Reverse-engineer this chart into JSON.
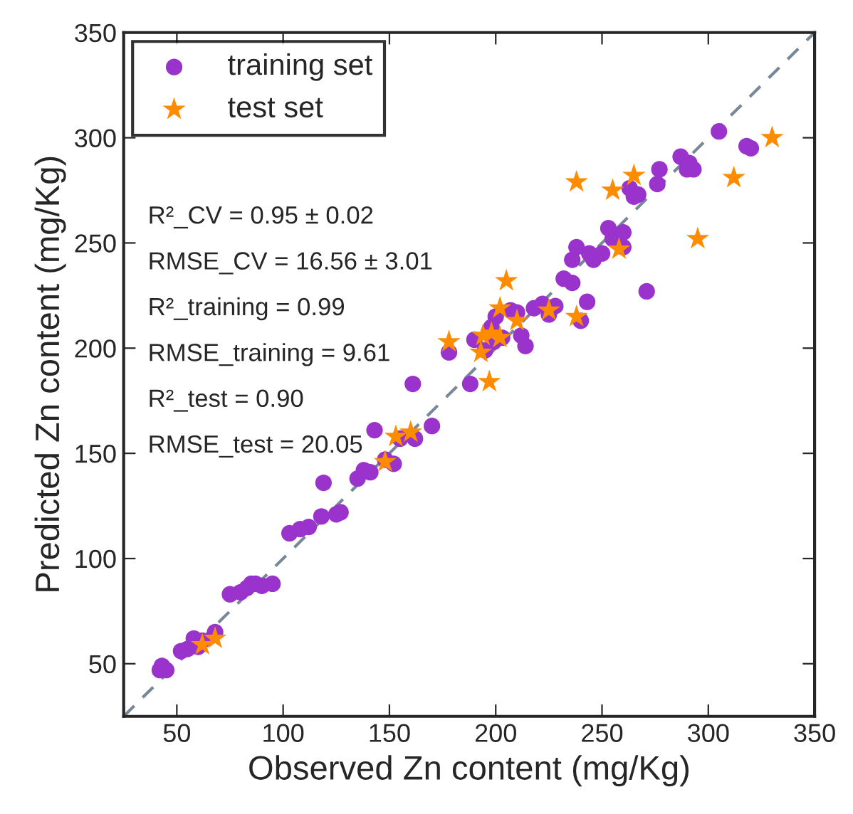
{
  "chart_data": {
    "type": "scatter",
    "xlabel": "Observed Zn content (mg/Kg)",
    "ylabel": "Predicted Zn content (mg/Kg)",
    "xlim": [
      25,
      350
    ],
    "ylim": [
      25,
      350
    ],
    "xticks": [
      50,
      100,
      150,
      200,
      250,
      300,
      350
    ],
    "yticks": [
      50,
      100,
      150,
      200,
      250,
      300,
      350
    ],
    "grid": false,
    "legend": "top left",
    "annotations": [
      "R²_CV = 0.95 ± 0.02",
      "RMSE_CV = 16.56 ± 3.01",
      "R²_training = 0.99",
      "RMSE_training = 9.61",
      "R²_test = 0.90",
      "RMSE_test = 20.05"
    ],
    "series": [
      {
        "type": "line",
        "color": "#778899",
        "line_style": "dashed",
        "marker": "none",
        "x": [
          25,
          350
        ],
        "values": [
          25,
          350
        ]
      },
      {
        "name": "training set",
        "color": "#9933cc",
        "marker": "circle",
        "x": [
          42,
          43,
          45,
          52,
          55,
          58,
          60,
          62,
          68,
          75,
          80,
          83,
          85,
          87,
          90,
          95,
          103,
          108,
          112,
          118,
          119,
          125,
          127,
          135,
          138,
          141,
          143,
          148,
          152,
          155,
          162,
          170,
          161,
          178,
          188,
          190,
          195,
          198,
          199,
          200,
          203,
          207,
          210,
          212,
          214,
          218,
          222,
          225,
          228,
          232,
          236,
          236,
          238,
          240,
          243,
          244,
          246,
          250,
          253,
          255,
          260,
          260,
          263,
          265,
          267,
          271,
          276,
          277,
          287,
          290,
          291,
          293,
          305,
          318,
          320
        ],
        "values": [
          47,
          49,
          47,
          56,
          57,
          62,
          58,
          61,
          65,
          83,
          84,
          86,
          88,
          88,
          87,
          88,
          112,
          114,
          115,
          120,
          136,
          121,
          122,
          138,
          142,
          141,
          161,
          147,
          145,
          157,
          157,
          163,
          183,
          198,
          183,
          204,
          199,
          210,
          203,
          215,
          205,
          218,
          217,
          206,
          201,
          219,
          221,
          216,
          220,
          233,
          231,
          242,
          248,
          213,
          222,
          245,
          242,
          245,
          257,
          252,
          248,
          255,
          276,
          272,
          273,
          227,
          278,
          285,
          291,
          285,
          288,
          285,
          303,
          296,
          295
        ]
      },
      {
        "name": "test set",
        "color": "#ff8c00",
        "marker": "star",
        "x": [
          62,
          68,
          148,
          153,
          160,
          178,
          193,
          194,
          197,
          198,
          202,
          202,
          205,
          210,
          225,
          238,
          238,
          255,
          258,
          265,
          295,
          312,
          330
        ],
        "values": [
          59,
          62,
          146,
          158,
          160,
          203,
          198,
          206,
          184,
          207,
          205,
          219,
          232,
          213,
          218,
          279,
          215,
          275,
          247,
          282,
          252,
          281,
          300
        ]
      }
    ]
  }
}
